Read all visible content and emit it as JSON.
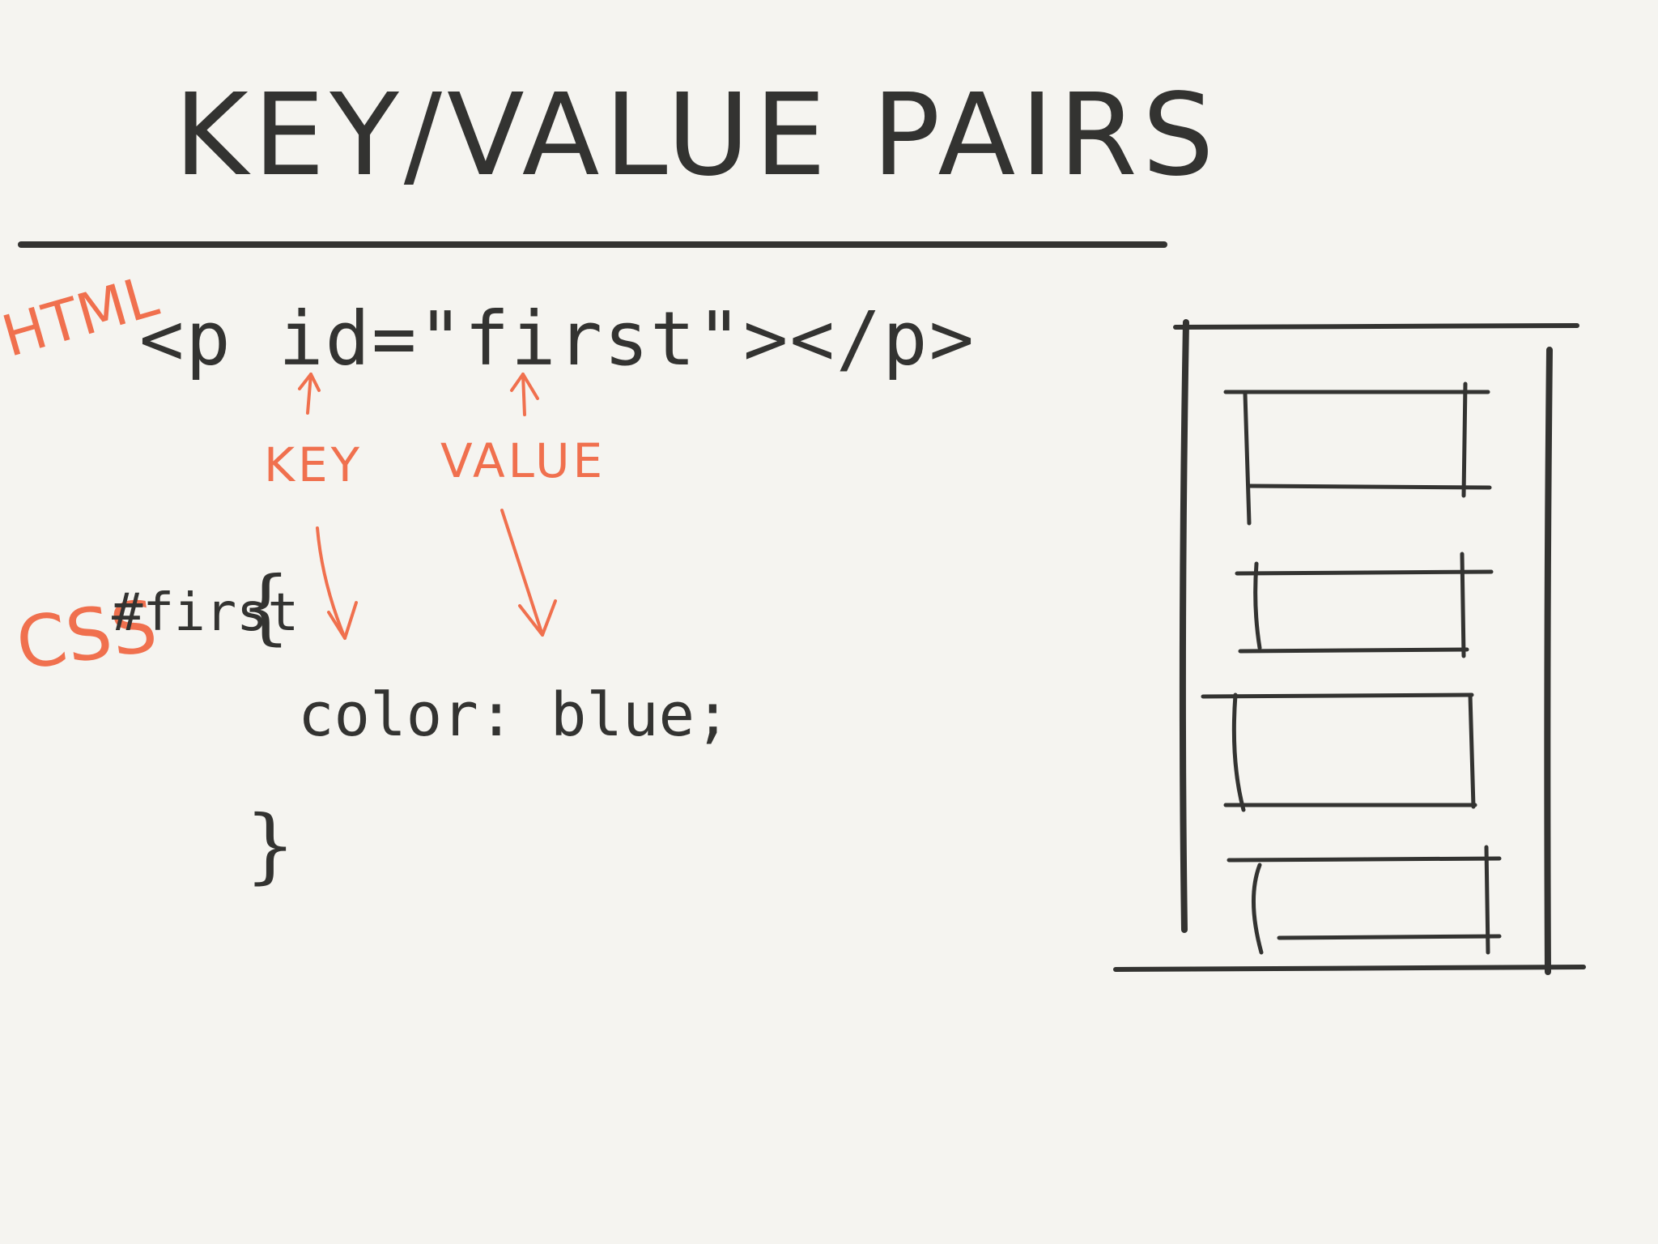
{
  "title": "KEY/VALUE PAIRS",
  "labels": {
    "html": "HTML",
    "css": "CSS",
    "key": "KEY",
    "value": "VALUE"
  },
  "html_code": "<p id=\"first\"></p>",
  "css_code": {
    "selector": "#first",
    "open_brace": "{",
    "declaration": "color: blue;",
    "close_brace": "}"
  },
  "colors": {
    "background": "#f5f4f0",
    "ink": "#333331",
    "accent": "#f0704e"
  }
}
